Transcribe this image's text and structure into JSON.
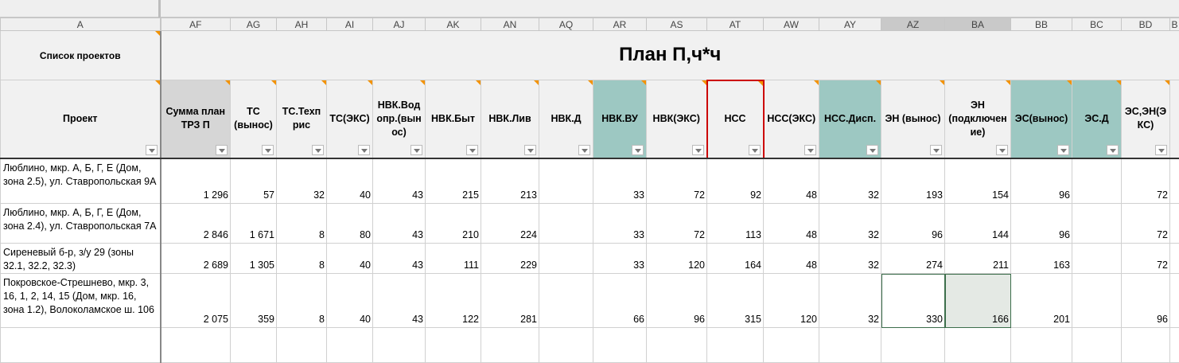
{
  "columns": [
    "A",
    "AF",
    "AG",
    "AH",
    "AI",
    "AJ",
    "AK",
    "AN",
    "AQ",
    "AR",
    "AS",
    "AT",
    "AW",
    "AY",
    "AZ",
    "BA",
    "BB",
    "BC",
    "BD",
    "B"
  ],
  "selected_columns": [
    "AZ",
    "BA"
  ],
  "row1": {
    "a": "Список проектов",
    "title": "План П,ч*ч"
  },
  "headers": [
    "Проект",
    "Сумма план ТРЗ П",
    "ТС (вынос)",
    "ТС.Техп рис",
    "ТС(ЭКС)",
    "НВК.Вод опр.(вын ос)",
    "НВК.Быт",
    "НВК.Лив",
    "НВК.Д",
    "НВК.ВУ",
    "НВК(ЭКС)",
    "НСС",
    "НСС(ЭКС)",
    "НСС.Дисп.",
    "ЭН (вынос)",
    "ЭН (подключен ие)",
    "ЭС(вынос)",
    "ЭС.Д",
    "ЭС,ЭН(Э КС)"
  ],
  "teal_columns": [
    "AR",
    "AY",
    "BB",
    "BC"
  ],
  "colors": {
    "teal": "#9dc8c2",
    "sum_header": "#d6d6d6",
    "comment_marker": "#f39200",
    "active_header_border": "#cc0000",
    "selection": "#3c6e4b"
  },
  "rows": [
    {
      "name": "Люблино, мкр. А, Б, Г, Е (Дом, зона 2.5), ул. Ставропольская 9А",
      "values": [
        "1 296",
        "57",
        "32",
        "40",
        "43",
        "215",
        "213",
        "",
        "33",
        "72",
        "92",
        "48",
        "32",
        "193",
        "154",
        "96",
        "",
        "72"
      ]
    },
    {
      "name": "Люблино, мкр. А, Б, Г, Е (Дом, зона 2.4), ул. Ставропольская 7А",
      "values": [
        "2 846",
        "1 671",
        "8",
        "80",
        "43",
        "210",
        "224",
        "",
        "33",
        "72",
        "113",
        "48",
        "32",
        "96",
        "144",
        "96",
        "",
        "72"
      ]
    },
    {
      "name": "Сиреневый б-р, з/у 29 (зоны 32.1, 32.2, 32.3)",
      "values": [
        "2 689",
        "1 305",
        "8",
        "40",
        "43",
        "111",
        "229",
        "",
        "33",
        "120",
        "164",
        "48",
        "32",
        "274",
        "211",
        "163",
        "",
        "72"
      ]
    },
    {
      "name": "Покровское-Стрешнево, мкр. 3, 16, 1, 2, 14, 15 (Дом, мкр. 16, зона 1.2), Волоколамское ш. 106",
      "values": [
        "2 075",
        "359",
        "8",
        "40",
        "43",
        "122",
        "281",
        "",
        "66",
        "96",
        "315",
        "120",
        "32",
        "330",
        "166",
        "201",
        "",
        "96"
      ]
    }
  ]
}
